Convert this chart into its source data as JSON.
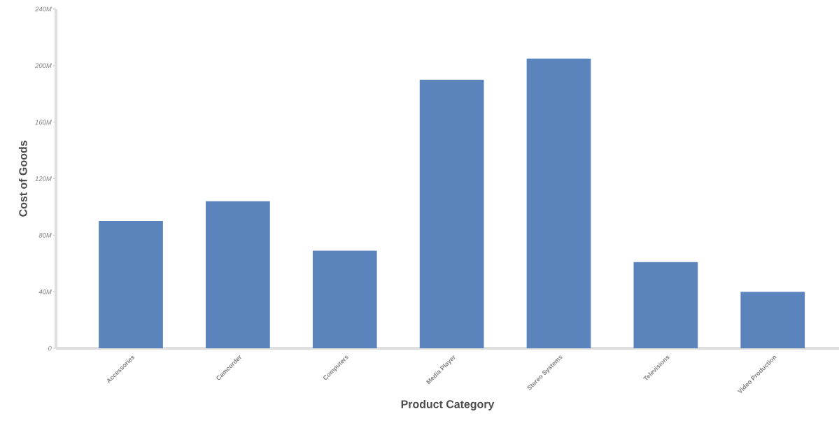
{
  "chart_data": {
    "type": "bar",
    "xlabel": "Product Category",
    "ylabel": "Cost of Goods",
    "categories": [
      "Accessories",
      "Camcorder",
      "Computers",
      "Media Player",
      "Stereo Systems",
      "Televisions",
      "Video Production"
    ],
    "values": [
      90,
      104,
      69,
      190,
      205,
      61,
      40
    ],
    "color": "#5b84bd",
    "ylim": [
      0,
      240
    ],
    "yticks": [
      {
        "value": 0,
        "label": "0"
      },
      {
        "value": 40,
        "label": "40M"
      },
      {
        "value": 80,
        "label": "80M"
      },
      {
        "value": 120,
        "label": "120M"
      },
      {
        "value": 160,
        "label": "160M"
      },
      {
        "value": 200,
        "label": "200M"
      },
      {
        "value": 240,
        "label": "240M"
      }
    ],
    "grid": false
  }
}
